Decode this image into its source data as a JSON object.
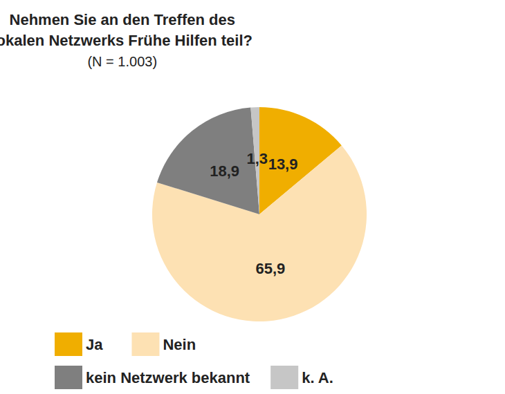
{
  "chart_data": {
    "type": "pie",
    "title": "Nehmen Sie an den Treffen des\nlokalen Netzwerks Frühe Hilfen teil?",
    "subtitle": "(N = 1.003)",
    "categories": [
      "Ja",
      "Nein",
      "kein Netzwerk bekannt",
      "k. A."
    ],
    "values": [
      13.9,
      65.9,
      18.9,
      1.3
    ],
    "value_labels": [
      "13,9",
      "65,9",
      "18,9",
      "1,3"
    ],
    "colors": [
      "#f0ae00",
      "#fde1b3",
      "#7f7f7f",
      "#c6c6c6"
    ],
    "data_labels": true,
    "legend": "bottom left"
  }
}
